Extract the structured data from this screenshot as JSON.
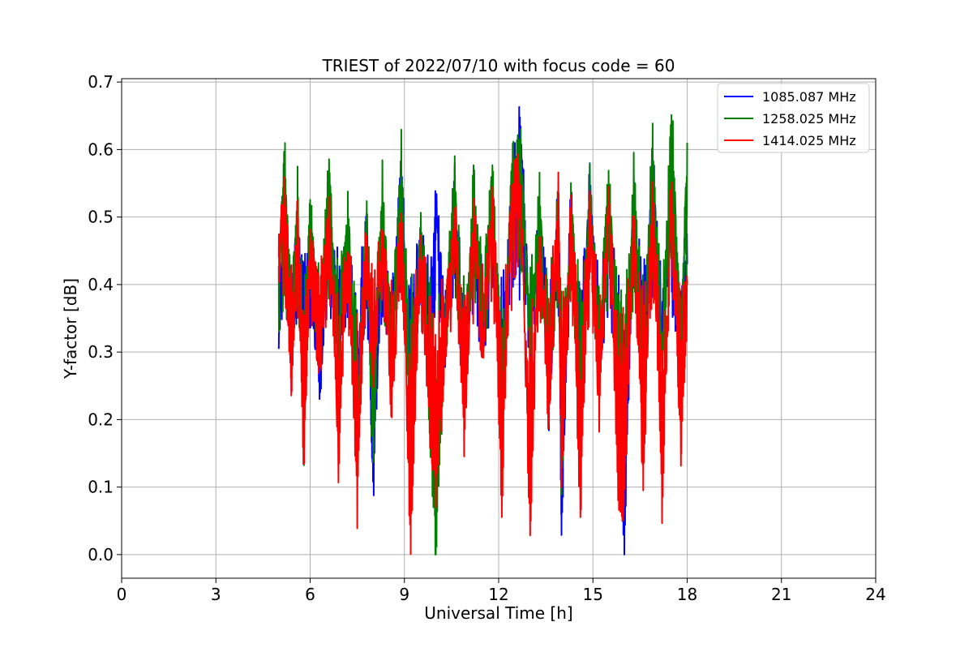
{
  "chart_data": {
    "type": "line",
    "title": "TRIEST of 2022/07/10 with focus code = 60",
    "xlabel": "Universal Time [h]",
    "ylabel": "Y-factor [dB]",
    "xlim": [
      0,
      24
    ],
    "ylim": [
      -0.035,
      0.705
    ],
    "x_ticks": [
      0,
      3,
      6,
      9,
      12,
      15,
      18,
      21,
      24
    ],
    "y_ticks": [
      0.0,
      0.1,
      0.2,
      0.3,
      0.4,
      0.5,
      0.6,
      0.7
    ],
    "grid": true,
    "legend_position": "top-right",
    "x_range_of_data": [
      5.0,
      18.0
    ],
    "series": [
      {
        "name": "1085.087 MHz",
        "color": "#0000ff",
        "x": [
          5.0,
          5.2,
          5.4,
          5.6,
          5.8,
          6.0,
          6.3,
          6.6,
          6.9,
          7.2,
          7.5,
          7.8,
          8.0,
          8.3,
          8.6,
          8.9,
          9.2,
          9.5,
          9.8,
          10.0,
          10.3,
          10.6,
          10.9,
          11.2,
          11.5,
          11.8,
          12.1,
          12.4,
          12.7,
          13.0,
          13.3,
          13.6,
          13.9,
          14.0,
          14.3,
          14.6,
          14.9,
          15.2,
          15.5,
          15.8,
          16.0,
          16.3,
          16.6,
          16.9,
          17.2,
          17.5,
          17.8,
          18.0
        ],
        "values": [
          0.33,
          0.59,
          0.26,
          0.5,
          0.3,
          0.45,
          0.22,
          0.55,
          0.3,
          0.44,
          0.23,
          0.51,
          0.08,
          0.49,
          0.3,
          0.59,
          0.22,
          0.47,
          0.28,
          0.55,
          0.3,
          0.56,
          0.23,
          0.51,
          0.32,
          0.53,
          0.17,
          0.56,
          0.65,
          0.3,
          0.52,
          0.21,
          0.55,
          0.01,
          0.54,
          0.22,
          0.59,
          0.26,
          0.5,
          0.29,
          0.0,
          0.55,
          0.27,
          0.6,
          0.31,
          0.57,
          0.27,
          0.43
        ]
      },
      {
        "name": "1258.025 MHz",
        "color": "#008000",
        "x": [
          5.0,
          5.2,
          5.4,
          5.6,
          5.8,
          6.0,
          6.3,
          6.6,
          6.9,
          7.2,
          7.5,
          7.8,
          8.0,
          8.3,
          8.6,
          8.9,
          9.2,
          9.5,
          9.8,
          10.0,
          10.3,
          10.6,
          10.9,
          11.2,
          11.5,
          11.8,
          12.1,
          12.4,
          12.7,
          13.0,
          13.3,
          13.6,
          13.9,
          14.0,
          14.3,
          14.6,
          14.9,
          15.2,
          15.5,
          15.8,
          16.0,
          16.3,
          16.6,
          16.9,
          17.2,
          17.5,
          17.8,
          18.0
        ],
        "values": [
          0.4,
          0.6,
          0.27,
          0.55,
          0.15,
          0.53,
          0.3,
          0.6,
          0.27,
          0.53,
          0.13,
          0.5,
          0.14,
          0.56,
          0.25,
          0.62,
          0.14,
          0.5,
          0.2,
          0.0,
          0.33,
          0.59,
          0.2,
          0.56,
          0.33,
          0.6,
          0.17,
          0.58,
          0.62,
          0.3,
          0.55,
          0.2,
          0.56,
          0.08,
          0.55,
          0.23,
          0.55,
          0.28,
          0.57,
          0.25,
          0.14,
          0.57,
          0.26,
          0.63,
          0.27,
          0.67,
          0.3,
          0.61
        ]
      },
      {
        "name": "1414.025 MHz",
        "color": "#ff0000",
        "x": [
          5.0,
          5.2,
          5.4,
          5.6,
          5.8,
          6.0,
          6.3,
          6.6,
          6.9,
          7.2,
          7.5,
          7.8,
          8.0,
          8.3,
          8.6,
          8.9,
          9.2,
          9.5,
          9.8,
          10.0,
          10.3,
          10.6,
          10.9,
          11.2,
          11.5,
          11.8,
          12.1,
          12.4,
          12.7,
          13.0,
          13.3,
          13.6,
          13.9,
          14.0,
          14.3,
          14.6,
          14.9,
          15.2,
          15.5,
          15.8,
          16.0,
          16.3,
          16.6,
          16.9,
          17.2,
          17.5,
          17.8,
          18.0
        ],
        "values": [
          0.42,
          0.56,
          0.24,
          0.5,
          0.12,
          0.48,
          0.25,
          0.54,
          0.13,
          0.46,
          0.06,
          0.48,
          0.24,
          0.5,
          0.2,
          0.53,
          0.0,
          0.45,
          0.19,
          0.1,
          0.3,
          0.53,
          0.15,
          0.52,
          0.28,
          0.54,
          0.08,
          0.55,
          0.57,
          0.02,
          0.5,
          0.19,
          0.54,
          0.1,
          0.52,
          0.06,
          0.53,
          0.21,
          0.55,
          0.1,
          0.07,
          0.52,
          0.1,
          0.57,
          0.06,
          0.56,
          0.14,
          0.4
        ]
      }
    ]
  }
}
